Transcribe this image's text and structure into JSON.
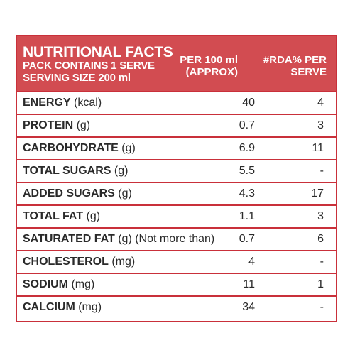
{
  "header": {
    "title": "NUTRITIONAL FACTS",
    "pack_line": "PACK CONTAINS 1 SERVE",
    "serving_line": "SERVING SIZE 200 ml",
    "col_per100_line1": "PER 100 ml",
    "col_per100_line2": "(APPROX)",
    "col_rda_line1": "#RDA% PER",
    "col_rda_line2": "SERVE"
  },
  "rows": [
    {
      "name": "ENERGY",
      "unit": "(kcal)",
      "per100": "40",
      "rda": "4"
    },
    {
      "name": "PROTEIN",
      "unit": "(g)",
      "per100": "0.7",
      "rda": "3"
    },
    {
      "name": "CARBOHYDRATE",
      "unit": "(g)",
      "per100": "6.9",
      "rda": "11"
    },
    {
      "name": "TOTAL SUGARS",
      "unit": "(g)",
      "per100": "5.5",
      "rda": "-"
    },
    {
      "name": "ADDED SUGARS",
      "unit": "(g)",
      "per100": "4.3",
      "rda": "17"
    },
    {
      "name": "TOTAL FAT",
      "unit": "(g)",
      "per100": "1.1",
      "rda": "3"
    },
    {
      "name": "SATURATED FAT",
      "unit": "(g) (Not more than)",
      "per100": "0.7",
      "rda": "6"
    },
    {
      "name": "CHOLESTEROL",
      "unit": "(mg)",
      "per100": "4",
      "rda": "-"
    },
    {
      "name": "SODIUM",
      "unit": "(mg)",
      "per100": "11",
      "rda": "1"
    },
    {
      "name": "CALCIUM",
      "unit": "(mg)",
      "per100": "34",
      "rda": "-"
    }
  ],
  "colors": {
    "header_bg": "#d24c51",
    "border": "#c9303a",
    "text": "#2a2a2a"
  }
}
